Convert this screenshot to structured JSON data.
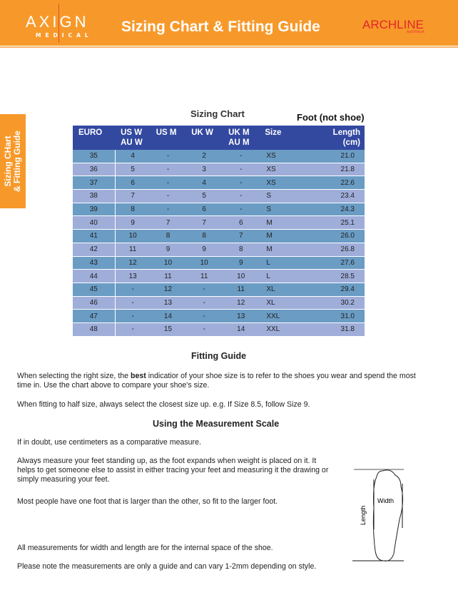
{
  "header": {
    "brand_left": "AXIGN",
    "brand_left_sub": "MEDICAL",
    "title": "Sizing Chart & Fitting Guide",
    "brand_right": "ARCHLINE",
    "brand_right_sub": "AUSTRALIA",
    "color": "#f7992a"
  },
  "side_tab": {
    "line1": "Sizing CHart",
    "line2": "& Fitting Guide"
  },
  "chart": {
    "title": "Sizing Chart",
    "note": "Foot (not shoe)",
    "columns": [
      "EURO",
      "US W\nAU W",
      "US M",
      "UK W",
      "UK M\nAU M",
      "Size",
      "Length\n(cm)"
    ],
    "header_color": "#3349a0",
    "row_colors": [
      "#6a9cc4",
      "#9fadd9"
    ],
    "rows": [
      [
        "35",
        "4",
        "-",
        "2",
        "-",
        "XS",
        "21.0"
      ],
      [
        "36",
        "5",
        "-",
        "3",
        "-",
        "XS",
        "21.8"
      ],
      [
        "37",
        "6",
        "-",
        "4",
        "-",
        "XS",
        "22.6"
      ],
      [
        "38",
        "7",
        "-",
        "5",
        "-",
        "S",
        "23.4"
      ],
      [
        "39",
        "8",
        "-",
        "6",
        "-",
        "S",
        "24.3"
      ],
      [
        "40",
        "9",
        "7",
        "7",
        "6",
        "M",
        "25.1"
      ],
      [
        "41",
        "10",
        "8",
        "8",
        "7",
        "M",
        "26.0"
      ],
      [
        "42",
        "11",
        "9",
        "9",
        "8",
        "M",
        "26.8"
      ],
      [
        "43",
        "12",
        "10",
        "10",
        "9",
        "L",
        "27.6"
      ],
      [
        "44",
        "13",
        "11",
        "11",
        "10",
        "L",
        "28.5"
      ],
      [
        "45",
        "-",
        "12",
        "-",
        "11",
        "XL",
        "29.4"
      ],
      [
        "46",
        "-",
        "13",
        "-",
        "12",
        "XL",
        "30.2"
      ],
      [
        "47",
        "-",
        "14",
        "-",
        "13",
        "XXL",
        "31.0"
      ],
      [
        "48",
        "-",
        "15",
        "-",
        "14",
        "XXL",
        "31.8"
      ]
    ]
  },
  "fitting": {
    "title": "Fitting Guide",
    "p1_before": "When selecting the right size, the ",
    "p1_bold": "best",
    "p1_after": " indicatior of your shoe size is to refer to the shoes you wear and spend the most time in. Use the chart above to compare your shoe's size.",
    "p2": "When fitting to half size, always select the closest size up. e.g. If Size 8.5, follow Size 9."
  },
  "measure": {
    "title": "Using the Measurement Scale",
    "p1": "If in doubt, use centimeters as a comparative measure.",
    "p2": "Always measure your feet standing up, as the foot expands when weight is placed on it. It helps to get someone else to assist in either tracing your feet and measuring it the drawing or simply measuring your feet.",
    "p3": "Most people have one foot that is larger than the other, so fit to the larger foot.",
    "p4": "All measurements for width and length are for the internal space of the shoe.",
    "p5": "Please note the measurements are only a guide and can vary 1-2mm depending on style."
  },
  "diagram": {
    "length_label": "Length",
    "width_label": "Width"
  }
}
